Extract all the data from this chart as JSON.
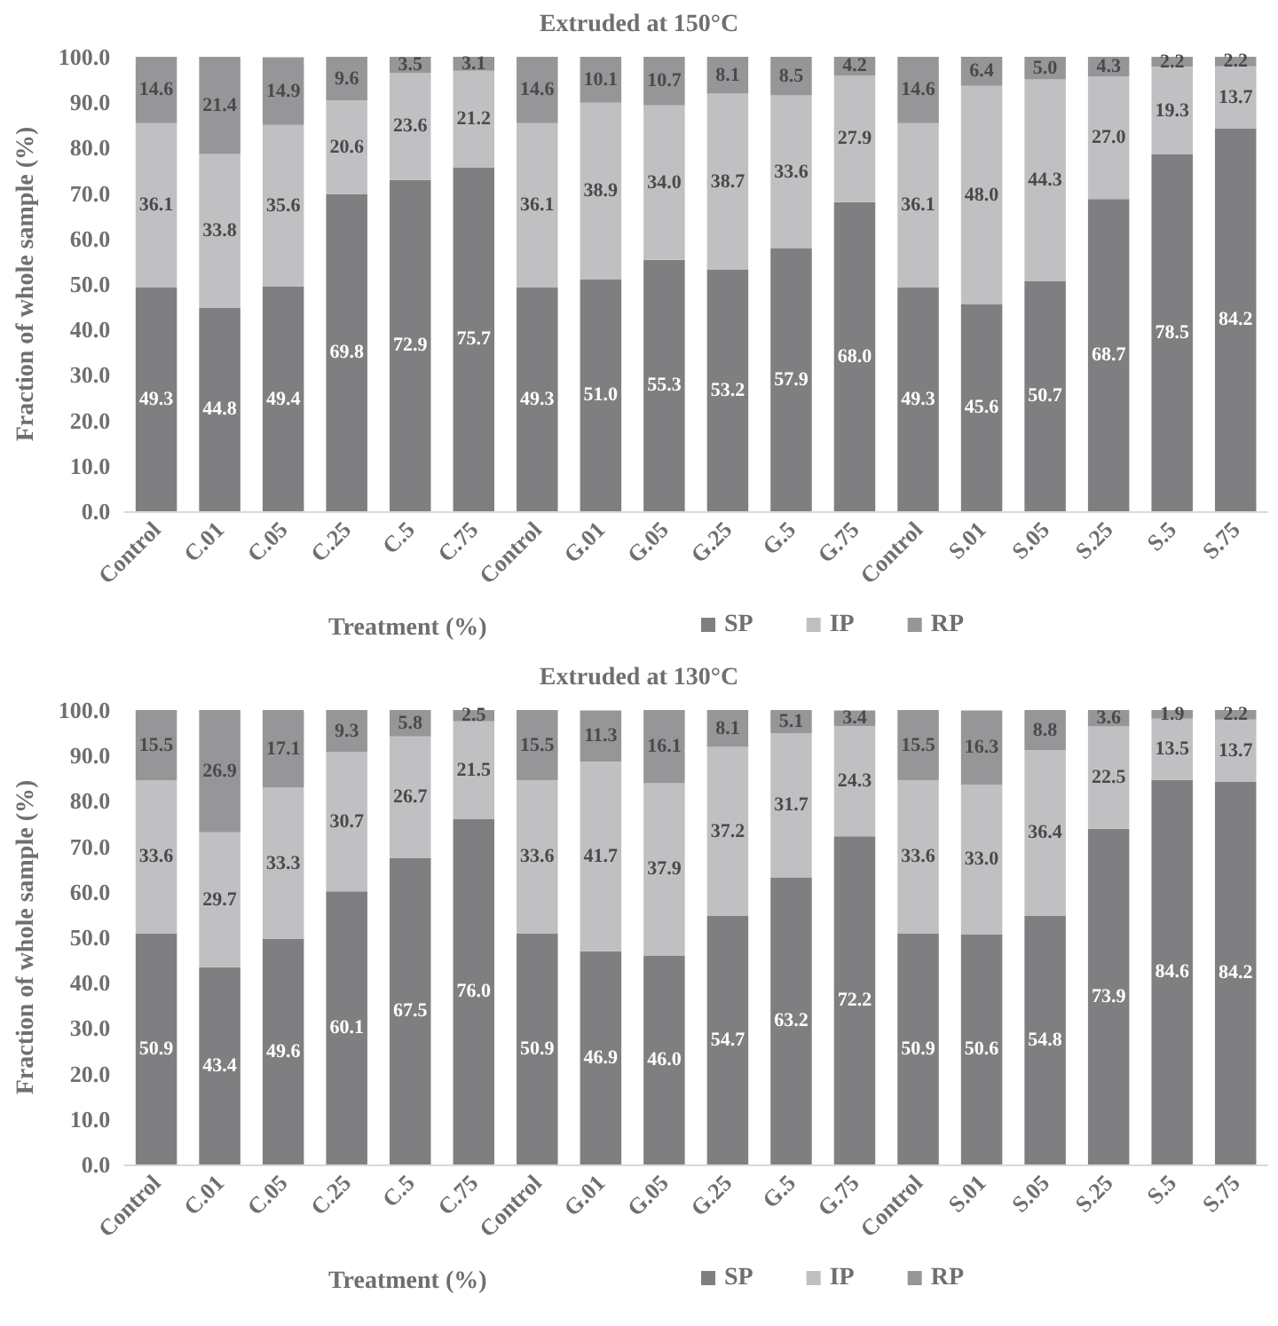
{
  "chart_data": [
    {
      "type": "bar",
      "title": "Extruded at 150°C",
      "xlabel": "Treatment (%)",
      "ylabel": "Fraction of whole sample (%)",
      "stacked": true,
      "legend": "bottom",
      "grid": false,
      "categories": [
        "Control",
        "C.01",
        "C.05",
        "C.25",
        "C.5",
        "C.75",
        "Control",
        "G.01",
        "G.05",
        "G.25",
        "G.5",
        "G.75",
        "Control",
        "S.01",
        "S.05",
        "S.25",
        "S.5",
        "S.75"
      ],
      "ylim": [
        0,
        100
      ],
      "yticks": [
        {
          "value": 0,
          "label": "0.0"
        },
        {
          "value": 10,
          "label": "10.0"
        },
        {
          "value": 20,
          "label": "20.0"
        },
        {
          "value": 30,
          "label": "30.0"
        },
        {
          "value": 40,
          "label": "40.0"
        },
        {
          "value": 50,
          "label": "50.0"
        },
        {
          "value": 60,
          "label": "60.0"
        },
        {
          "value": 70,
          "label": "70.0"
        },
        {
          "value": 80,
          "label": "80.0"
        },
        {
          "value": 90,
          "label": "90.0"
        },
        {
          "value": 100,
          "label": "100.0"
        }
      ],
      "series": [
        {
          "name": "SP",
          "color": "#7f7f81",
          "values": [
            49.3,
            44.8,
            49.4,
            69.8,
            72.9,
            75.7,
            49.3,
            51.0,
            55.3,
            53.2,
            57.9,
            68.0,
            49.3,
            45.6,
            50.7,
            68.7,
            78.5,
            84.2
          ],
          "value_labels": [
            "49.3",
            "44.8",
            "49.4",
            "69.8",
            "72.9",
            "75.7",
            "49.3",
            "51.0",
            "55.3",
            "53.2",
            "57.9",
            "68.0",
            "49.3",
            "45.6",
            "50.7",
            "68.7",
            "78.5",
            "84.2"
          ]
        },
        {
          "name": "IP",
          "color": "#c0c0c2",
          "values": [
            36.1,
            33.8,
            35.6,
            20.6,
            23.6,
            21.2,
            36.1,
            38.9,
            34.0,
            38.7,
            33.6,
            27.9,
            36.1,
            48.0,
            44.3,
            27.0,
            19.3,
            13.7
          ],
          "value_labels": [
            "36.1",
            "33.8",
            "35.6",
            "20.6",
            "23.6",
            "21.2",
            "36.1",
            "38.9",
            "34.0",
            "38.7",
            "33.6",
            "27.9",
            "36.1",
            "48.0",
            "44.3",
            "27.0",
            "19.3",
            "13.7"
          ]
        },
        {
          "name": "RP",
          "color": "#969698",
          "values": [
            14.6,
            21.4,
            14.9,
            9.6,
            3.5,
            3.1,
            14.6,
            10.1,
            10.7,
            8.1,
            8.5,
            4.2,
            14.6,
            6.4,
            5.0,
            4.3,
            2.2,
            2.2
          ],
          "value_labels": [
            "14.6",
            "21.4",
            "14.9",
            "9.6",
            "3.5",
            "3.1",
            "14.6",
            "10.1",
            "10.7",
            "8.1",
            "8.5",
            "4.2",
            "14.6",
            "6.4",
            "5.0",
            "4.3",
            "2.2",
            "2.2"
          ]
        }
      ]
    },
    {
      "type": "bar",
      "title": "Extruded at 130°C",
      "xlabel": "Treatment (%)",
      "ylabel": "Fraction of whole sample (%)",
      "stacked": true,
      "legend": "bottom",
      "grid": false,
      "categories": [
        "Control",
        "C.01",
        "C.05",
        "C.25",
        "C.5",
        "C.75",
        "Control",
        "G.01",
        "G.05",
        "G.25",
        "G.5",
        "G.75",
        "Control",
        "S.01",
        "S.05",
        "S.25",
        "S.5",
        "S.75"
      ],
      "ylim": [
        0,
        100
      ],
      "yticks": [
        {
          "value": 0,
          "label": "0.0"
        },
        {
          "value": 10,
          "label": "10.0"
        },
        {
          "value": 20,
          "label": "20.0"
        },
        {
          "value": 30,
          "label": "30.0"
        },
        {
          "value": 40,
          "label": "40.0"
        },
        {
          "value": 50,
          "label": "50.0"
        },
        {
          "value": 60,
          "label": "60.0"
        },
        {
          "value": 70,
          "label": "70.0"
        },
        {
          "value": 80,
          "label": "80.0"
        },
        {
          "value": 90,
          "label": "90.0"
        },
        {
          "value": 100,
          "label": "100.0"
        }
      ],
      "series": [
        {
          "name": "SP",
          "color": "#7f7f81",
          "values": [
            50.9,
            43.4,
            49.6,
            60.1,
            67.5,
            76.0,
            50.9,
            46.9,
            46.0,
            54.7,
            63.2,
            72.2,
            50.9,
            50.6,
            54.8,
            73.9,
            84.6,
            84.2
          ],
          "value_labels": [
            "50.9",
            "43.4",
            "49.6",
            "60.1",
            "67.5",
            "76.0",
            "50.9",
            "46.9",
            "46.0",
            "54.7",
            "63.2",
            "72.2",
            "50.9",
            "50.6",
            "54.8",
            "73.9",
            "84.6",
            "84.2"
          ]
        },
        {
          "name": "IP",
          "color": "#c0c0c2",
          "values": [
            33.6,
            29.7,
            33.3,
            30.7,
            26.7,
            21.5,
            33.6,
            41.7,
            37.9,
            37.2,
            31.7,
            24.3,
            33.6,
            33.0,
            36.4,
            22.5,
            13.5,
            13.7
          ],
          "value_labels": [
            "33.6",
            "29.7",
            "33.3",
            "30.7",
            "26.7",
            "21.5",
            "33.6",
            "41.7",
            "37.9",
            "37.2",
            "31.7",
            "24.3",
            "33.6",
            "33.0",
            "36.4",
            "22.5",
            "13.5",
            "13.7"
          ]
        },
        {
          "name": "RP",
          "color": "#969698",
          "values": [
            15.5,
            26.9,
            17.1,
            9.3,
            5.8,
            2.5,
            15.5,
            11.3,
            16.1,
            8.1,
            5.1,
            3.4,
            15.5,
            16.3,
            8.8,
            3.6,
            1.9,
            2.2
          ],
          "value_labels": [
            "15.5",
            "26.9",
            "17.1",
            "9.3",
            "5.8",
            "2.5",
            "15.5",
            "11.3",
            "16.1",
            "8.1",
            "5.1",
            "3.4",
            "15.5",
            "16.3",
            "8.8",
            "3.6",
            "1.9",
            "2.2"
          ]
        }
      ]
    }
  ]
}
